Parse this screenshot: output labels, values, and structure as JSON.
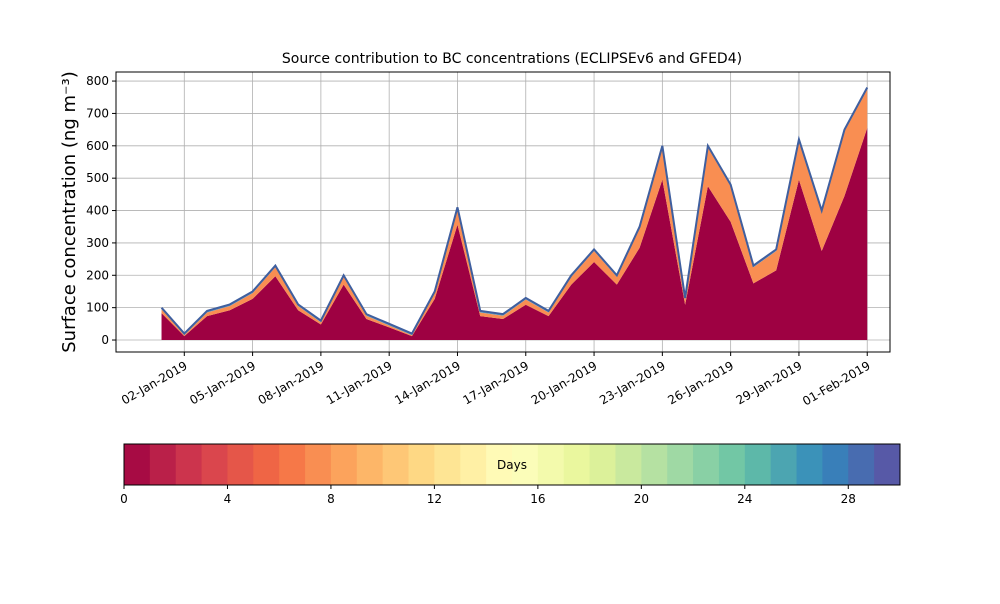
{
  "chart_data": {
    "type": "area",
    "stacked": true,
    "title": "Source contribution to BC concentrations (ECLIPSEv6 and GFED4)",
    "ylabel": "Surface concentration (ng m⁻³)",
    "x": [
      "2019-01-01",
      "2019-01-02",
      "2019-01-03",
      "2019-01-04",
      "2019-01-05",
      "2019-01-06",
      "2019-01-07",
      "2019-01-08",
      "2019-01-09",
      "2019-01-10",
      "2019-01-11",
      "2019-01-12",
      "2019-01-13",
      "2019-01-14",
      "2019-01-15",
      "2019-01-16",
      "2019-01-17",
      "2019-01-18",
      "2019-01-19",
      "2019-01-20",
      "2019-01-21",
      "2019-01-22",
      "2019-01-23",
      "2019-01-24",
      "2019-01-25",
      "2019-01-26",
      "2019-01-27",
      "2019-01-28",
      "2019-01-29",
      "2019-01-30",
      "2019-01-31",
      "2019-02-01"
    ],
    "series": [
      {
        "color": "#9e0142",
        "values": [
          83,
          12,
          74,
          92,
          127,
          197,
          92,
          48,
          171,
          65,
          39,
          12,
          127,
          356,
          74,
          65,
          109,
          74,
          171,
          241,
          171,
          285,
          495,
          109,
          475,
          365,
          175,
          215,
          495,
          275,
          445,
          655
        ]
      },
      {
        "color": "#f98e52",
        "values": [
          12,
          3,
          11,
          13,
          18,
          28,
          13,
          7,
          24,
          10,
          6,
          3,
          18,
          49,
          11,
          10,
          16,
          11,
          24,
          34,
          24,
          60,
          100,
          16,
          120,
          110,
          50,
          60,
          120,
          120,
          200,
          120
        ]
      },
      {
        "color": "#5b9bc4",
        "edge": "#3f5f9f",
        "values": [
          5,
          5,
          5,
          5,
          5,
          5,
          5,
          5,
          5,
          5,
          5,
          5,
          5,
          5,
          5,
          5,
          5,
          5,
          5,
          5,
          5,
          5,
          5,
          5,
          5,
          5,
          5,
          5,
          5,
          5,
          5,
          5
        ]
      }
    ],
    "xlim": [
      "2018-12-30",
      "2019-02-02"
    ],
    "xticks": [
      {
        "value": "2019-01-02",
        "label": "02-Jan-2019"
      },
      {
        "value": "2019-01-05",
        "label": "05-Jan-2019"
      },
      {
        "value": "2019-01-08",
        "label": "08-Jan-2019"
      },
      {
        "value": "2019-01-11",
        "label": "11-Jan-2019"
      },
      {
        "value": "2019-01-14",
        "label": "14-Jan-2019"
      },
      {
        "value": "2019-01-17",
        "label": "17-Jan-2019"
      },
      {
        "value": "2019-01-20",
        "label": "20-Jan-2019"
      },
      {
        "value": "2019-01-23",
        "label": "23-Jan-2019"
      },
      {
        "value": "2019-01-26",
        "label": "26-Jan-2019"
      },
      {
        "value": "2019-01-29",
        "label": "29-Jan-2019"
      },
      {
        "value": "2019-02-01",
        "label": "01-Feb-2019"
      }
    ],
    "ylim": [
      -37,
      828
    ],
    "yticks": [
      0,
      100,
      200,
      300,
      400,
      500,
      600,
      700,
      800
    ],
    "grid": true,
    "colorbar": {
      "label": "Days",
      "colors": [
        "#9e0142",
        "#d53e4f",
        "#f46d43",
        "#fdae61",
        "#fee08b",
        "#ffffbf",
        "#e6f598",
        "#abdda4",
        "#66c2a5",
        "#3288bd",
        "#5e4fa2"
      ],
      "lim": [
        0,
        30
      ],
      "ticks": [
        0,
        4,
        8,
        12,
        16,
        20,
        24,
        28
      ]
    }
  }
}
